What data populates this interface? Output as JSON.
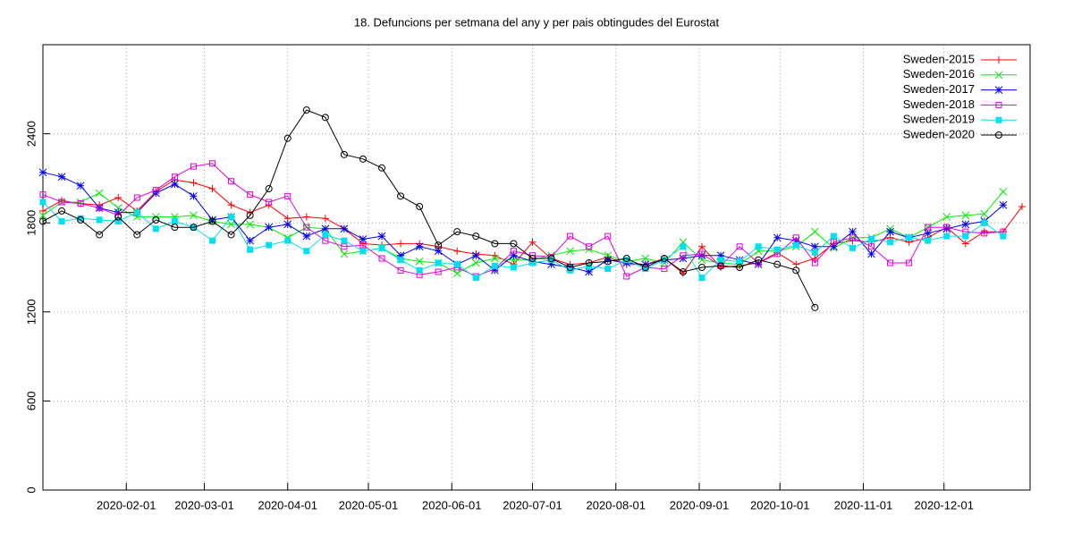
{
  "chart_data": {
    "type": "line",
    "title": "18. Defuncions per setmana del any y per pais obtingudes del Eurostat",
    "x": [
      "2020-01-01",
      "2020-01-08",
      "2020-01-15",
      "2020-01-22",
      "2020-01-29",
      "2020-02-05",
      "2020-02-12",
      "2020-02-19",
      "2020-02-26",
      "2020-03-04",
      "2020-03-11",
      "2020-03-18",
      "2020-03-25",
      "2020-04-01",
      "2020-04-08",
      "2020-04-15",
      "2020-04-22",
      "2020-04-29",
      "2020-05-06",
      "2020-05-13",
      "2020-05-20",
      "2020-05-27",
      "2020-06-03",
      "2020-06-10",
      "2020-06-17",
      "2020-06-24",
      "2020-07-01",
      "2020-07-08",
      "2020-07-15",
      "2020-07-22",
      "2020-07-29",
      "2020-08-05",
      "2020-08-12",
      "2020-08-19",
      "2020-08-26",
      "2020-09-02",
      "2020-09-09",
      "2020-09-16",
      "2020-09-23",
      "2020-09-30",
      "2020-10-07",
      "2020-10-14",
      "2020-10-21",
      "2020-10-28",
      "2020-11-04",
      "2020-11-11",
      "2020-11-18",
      "2020-11-25",
      "2020-12-02",
      "2020-12-09",
      "2020-12-16",
      "2020-12-23",
      "2020-12-30"
    ],
    "xlim": [
      "2020-01-01",
      "2021-01-02"
    ],
    "xticks": [
      "2020-02-01",
      "2020-03-01",
      "2020-04-01",
      "2020-05-01",
      "2020-06-01",
      "2020-07-01",
      "2020-08-01",
      "2020-09-01",
      "2020-10-01",
      "2020-11-01",
      "2020-12-01"
    ],
    "ylim": [
      0,
      3000
    ],
    "yticks": [
      0,
      600,
      1200,
      1800,
      2400
    ],
    "grid": true,
    "legend": "top-right",
    "series": [
      {
        "name": "Sweden-2015",
        "color": "#ff0000",
        "marker": "plus",
        "values": [
          1880,
          1950,
          1930,
          1920,
          1970,
          1880,
          2010,
          2090,
          2070,
          2030,
          1920,
          1870,
          1920,
          1830,
          1840,
          1830,
          1760,
          1660,
          1650,
          1660,
          1660,
          1640,
          1610,
          1590,
          1580,
          1520,
          1670,
          1560,
          1520,
          1530,
          1570,
          1520,
          1520,
          1560,
          1460,
          1640,
          1500,
          1510,
          1530,
          1600,
          1520,
          1560,
          1660,
          1680,
          1670,
          1700,
          1670,
          1700,
          1770,
          1660,
          1740,
          1740,
          1910
        ]
      },
      {
        "name": "Sweden-2016",
        "color": "#00ee00",
        "marker": "cross",
        "values": [
          1850,
          1940,
          1940,
          2000,
          1900,
          1840,
          1840,
          1840,
          1850,
          1810,
          1790,
          1790,
          1770,
          1700,
          1770,
          1760,
          1590,
          1610,
          1630,
          1560,
          1540,
          1530,
          1460,
          1530,
          1560,
          1550,
          1550,
          1580,
          1610,
          1620,
          1580,
          1540,
          1560,
          1530,
          1670,
          1550,
          1530,
          1520,
          1610,
          1610,
          1640,
          1740,
          1630,
          1700,
          1700,
          1760,
          1700,
          1770,
          1840,
          1850,
          1860,
          2010,
          null
        ]
      },
      {
        "name": "Sweden-2017",
        "color": "#0000ee",
        "marker": "star",
        "values": [
          2140,
          2110,
          2050,
          1900,
          1870,
          1870,
          2000,
          2060,
          1980,
          1820,
          1840,
          1680,
          1770,
          1790,
          1710,
          1760,
          1760,
          1690,
          1710,
          1580,
          1640,
          1610,
          1520,
          1580,
          1480,
          1580,
          1540,
          1520,
          1500,
          1470,
          1550,
          1530,
          1520,
          1550,
          1560,
          1580,
          1580,
          1550,
          1520,
          1700,
          1680,
          1640,
          1640,
          1740,
          1590,
          1740,
          1700,
          1730,
          1760,
          1790,
          1810,
          1920,
          null
        ]
      },
      {
        "name": "Sweden-2018",
        "color": "#dd00dd",
        "marker": "square",
        "values": [
          1990,
          1940,
          1930,
          1900,
          1850,
          1970,
          2020,
          2110,
          2180,
          2200,
          2080,
          1990,
          1940,
          1980,
          1770,
          1680,
          1640,
          1650,
          1560,
          1480,
          1450,
          1470,
          1500,
          1440,
          1490,
          1610,
          1580,
          1570,
          1710,
          1640,
          1710,
          1440,
          1500,
          1490,
          1580,
          1590,
          1510,
          1640,
          1530,
          1590,
          1700,
          1530,
          1670,
          1700,
          1640,
          1530,
          1530,
          1770,
          1770,
          1740,
          1730,
          1740,
          null
        ]
      },
      {
        "name": "Sweden-2019",
        "color": "#00e0f0",
        "marker": "filled-square",
        "values": [
          1940,
          1810,
          1830,
          1820,
          1810,
          1870,
          1760,
          1810,
          1770,
          1680,
          1840,
          1620,
          1650,
          1680,
          1610,
          1720,
          1680,
          1610,
          1630,
          1550,
          1480,
          1530,
          1520,
          1430,
          1510,
          1500,
          1530,
          1550,
          1480,
          1510,
          1490,
          1550,
          1490,
          1550,
          1640,
          1430,
          1550,
          1540,
          1640,
          1620,
          1650,
          1600,
          1710,
          1630,
          1690,
          1670,
          1700,
          1680,
          1710,
          1710,
          1800,
          1710,
          null
        ]
      },
      {
        "name": "Sweden-2020",
        "color": "#000000",
        "marker": "circle",
        "values": [
          1810,
          1880,
          1820,
          1720,
          1840,
          1720,
          1820,
          1770,
          1770,
          1810,
          1720,
          1850,
          2030,
          2370,
          2560,
          2510,
          2260,
          2230,
          2170,
          1980,
          1910,
          1650,
          1740,
          1710,
          1660,
          1660,
          1560,
          1560,
          1500,
          1530,
          1540,
          1560,
          1500,
          1560,
          1470,
          1500,
          1510,
          1500,
          1550,
          1520,
          1480,
          1230,
          null,
          null,
          null,
          null,
          null,
          null,
          null,
          null,
          null,
          null,
          null
        ]
      }
    ]
  }
}
